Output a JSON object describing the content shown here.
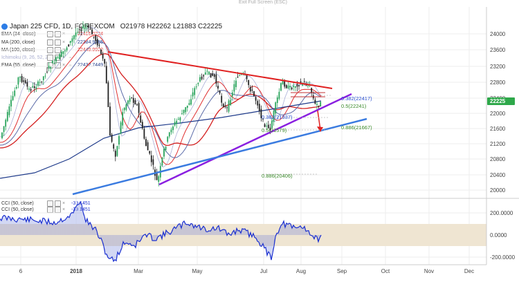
{
  "banner": {
    "exit_fullscreen": "Exit Full Screen (ESC)"
  },
  "symbol": {
    "title": "Japan 225 CFD, 1D, FOREXCOM",
    "ohlc": "O21978  H22262  L21883  C22225"
  },
  "indicators": [
    {
      "label": "EMA (34, close)",
      "value": "22416.0224",
      "color": "#e03030"
    },
    {
      "label": "MA (200, close)",
      "value": "22384.9455",
      "color": "#1e3a8a"
    },
    {
      "label": "MA (100, close)",
      "value": "22449.9920",
      "color": "#e03030"
    },
    {
      "label": "Ichimoku (9, 26, 52, 26)",
      "value": "",
      "color": "#9aa0c0"
    },
    {
      "label": "EMA (55, close)",
      "value": "22432.7449",
      "color": "#1e3a8a"
    }
  ],
  "cci_indicators": [
    {
      "label": "CCI (50, close)",
      "value": "-39.1451"
    },
    {
      "label": "CCI (50, close)",
      "value": "-39.1451"
    }
  ],
  "price_axis": [
    "24000",
    "23600",
    "23200",
    "22800",
    "22400",
    "22000",
    "21600",
    "21200",
    "20800",
    "20400",
    "20000"
  ],
  "price_marker": {
    "value": "22225",
    "color": "#2ea84a"
  },
  "cci_axis": [
    "200.0000",
    "0.0000",
    "-200.0000"
  ],
  "time_axis": [
    "6",
    "2018",
    "Mar",
    "May",
    "Jul",
    "Aug",
    "Sep",
    "Oct",
    "Nov",
    "Dec"
  ],
  "fib_labels": [
    {
      "text": "0.382(22417)",
      "color": "#2a4fd0"
    },
    {
      "text": "0.5(22241)",
      "color": "#3a8a2a"
    },
    {
      "text": "0.886(21667)",
      "color": "#3a8a2a"
    },
    {
      "text": "0.382(21937)",
      "color": "#2a4fd0"
    },
    {
      "text": "0.5(21579)",
      "color": "#3a8a2a"
    },
    {
      "text": "0.886(20406)",
      "color": "#3a8a2a"
    }
  ],
  "colors": {
    "up": "#27a35a",
    "down": "#222222",
    "trend_red": "#e02020",
    "trend_purple": "#8a1fe0",
    "trend_blue": "#3a7be0",
    "cci_line": "#1a2fd0",
    "cci_band": "#efe5d2",
    "grid": "#eeeeee"
  }
}
